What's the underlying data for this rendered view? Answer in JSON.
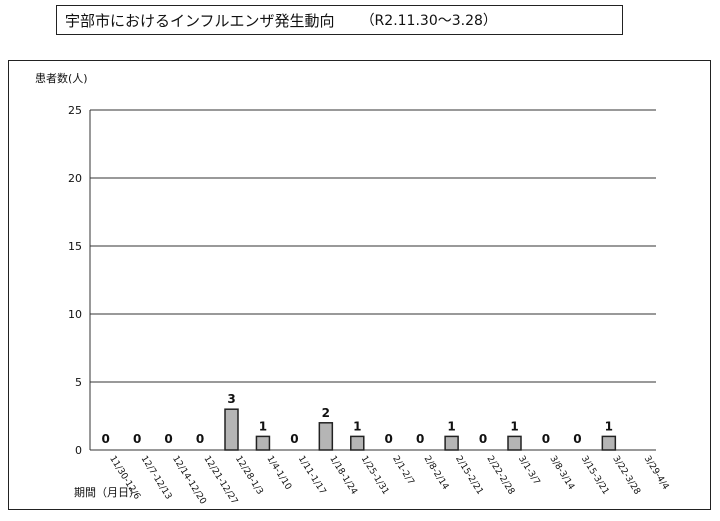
{
  "title": "宇部市におけるインフルエンザ発生動向",
  "subtitle": "（R2.11.30～3.28）",
  "chart_data": {
    "type": "bar",
    "ylabel": "患者数(人)",
    "xlabel": "期間（月日）",
    "ylim": [
      0,
      25
    ],
    "yticks": [
      0,
      5,
      10,
      15,
      20,
      25
    ],
    "grid": true,
    "categories": [
      "11/30-12/6",
      "12/7-12/13",
      "12/14-12/20",
      "12/21-12/27",
      "12/28-1/3",
      "1/4-1/10",
      "1/11-1/17",
      "1/18-1/24",
      "1/25-1/31",
      "2/1-2/7",
      "2/8-2/14",
      "2/15-2/21",
      "2/22-2/28",
      "3/1-3/7",
      "3/8-3/14",
      "3/15-3/21",
      "3/22-3/28",
      "3/29-4/4"
    ],
    "values": [
      0,
      0,
      0,
      0,
      3,
      1,
      0,
      2,
      1,
      0,
      0,
      1,
      0,
      1,
      0,
      0,
      1,
      null
    ],
    "bar_color": "#b5b5b5"
  }
}
